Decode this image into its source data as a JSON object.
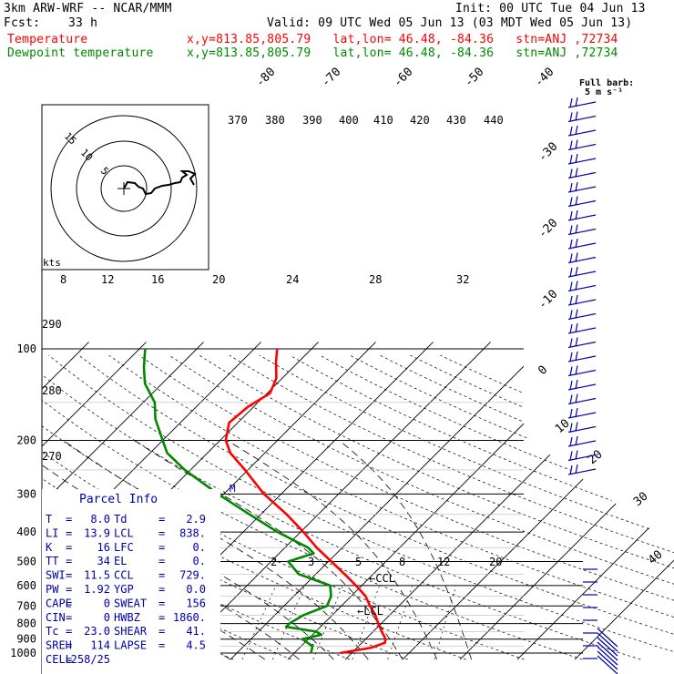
{
  "header": {
    "model": "3km ARW-WRF -- NCAR/MMM",
    "init": "Init: 00 UTC Tue 04 Jun 13",
    "fcst_label": "Fcst:",
    "fcst_value": "33 h",
    "valid": "Valid: 09 UTC Wed 05 Jun 13 (03 MDT Wed 05 Jun 13)",
    "temp_label": "Temperature",
    "dew_label": "Dewpoint temperature",
    "loc": "x,y=813.85,805.79   lat,lon= 46.48, -84.36   stn=ANJ ,72734"
  },
  "colors": {
    "temperature": "#ff0000",
    "dewpoint": "#008800",
    "hodograph": "#000000",
    "barbs": "#0000aa"
  },
  "barb_key": {
    "title": "Full barb:",
    "value": "5 m s⁻¹"
  },
  "chart_data": {
    "type": "line",
    "title": "",
    "y_axis": {
      "label": "",
      "scale": "log",
      "ticks": [
        100,
        200,
        300,
        400,
        500,
        600,
        700,
        800,
        900,
        1000
      ]
    },
    "isotherm_labels": [
      -80,
      -70,
      -60,
      -50,
      -40,
      -30,
      -20,
      -10,
      0,
      10,
      20,
      30,
      40
    ],
    "mixing_ratio_labels": [
      "2",
      "3",
      "5",
      "8",
      "12",
      "20"
    ],
    "theta_e_labels_top": [
      "370",
      "380",
      "390",
      "400",
      "410",
      "420",
      "430",
      "440"
    ],
    "theta_e_labels_mid": [
      "8",
      "12",
      "16",
      "20",
      "24",
      "28",
      "32"
    ],
    "theta_labels": [
      "290",
      "280",
      "270"
    ],
    "series": [
      {
        "name": "Temperature",
        "color": "#ff0000",
        "points": [
          [
            1000,
            8.0
          ],
          [
            960,
            12.5
          ],
          [
            925,
            14.0
          ],
          [
            900,
            13.5
          ],
          [
            850,
            11.5
          ],
          [
            800,
            9.5
          ],
          [
            750,
            7.5
          ],
          [
            700,
            5.0
          ],
          [
            650,
            2.5
          ],
          [
            600,
            -1.0
          ],
          [
            550,
            -5.0
          ],
          [
            500,
            -9.5
          ],
          [
            450,
            -14.5
          ],
          [
            400,
            -19.5
          ],
          [
            350,
            -25.5
          ],
          [
            300,
            -33.0
          ],
          [
            250,
            -40.5
          ],
          [
            220,
            -46.0
          ],
          [
            200,
            -49.0
          ],
          [
            175,
            -51.5
          ],
          [
            155,
            -51.0
          ],
          [
            140,
            -49.5
          ],
          [
            125,
            -51.0
          ],
          [
            110,
            -54.0
          ],
          [
            100,
            -56.0
          ]
        ]
      },
      {
        "name": "Dewpoint temperature",
        "color": "#008800",
        "points": [
          [
            1000,
            2.9
          ],
          [
            950,
            2.0
          ],
          [
            900,
            -1.0
          ],
          [
            870,
            1.5
          ],
          [
            850,
            0.0
          ],
          [
            820,
            -6.0
          ],
          [
            800,
            -6.0
          ],
          [
            750,
            -5.0
          ],
          [
            700,
            -2.5
          ],
          [
            650,
            -3.5
          ],
          [
            600,
            -5.5
          ],
          [
            550,
            -13.0
          ],
          [
            500,
            -17.0
          ],
          [
            470,
            -14.0
          ],
          [
            450,
            -16.0
          ],
          [
            400,
            -24.0
          ],
          [
            350,
            -32.0
          ],
          [
            300,
            -41.0
          ],
          [
            250,
            -51.0
          ],
          [
            220,
            -57.0
          ],
          [
            200,
            -60.0
          ],
          [
            170,
            -65.0
          ],
          [
            150,
            -68.0
          ],
          [
            130,
            -73.0
          ],
          [
            115,
            -76.0
          ],
          [
            100,
            -79.0
          ]
        ]
      }
    ]
  },
  "hodograph": {
    "units_label": "kts",
    "ring_labels": [
      "15",
      "10",
      "5"
    ]
  },
  "parcel_info": {
    "title": "Parcel Info",
    "rows": [
      {
        "left_label": "T",
        "left_value": "8.0",
        "right_label": "Td",
        "right_value": "2.9"
      },
      {
        "left_label": "LI",
        "left_value": "13.9",
        "right_label": "LCL",
        "right_value": "838."
      },
      {
        "left_label": "K",
        "left_value": "16",
        "right_label": "LFC",
        "right_value": "0."
      },
      {
        "left_label": "TT",
        "left_value": "34",
        "right_label": "EL",
        "right_value": "0."
      },
      {
        "left_label": "SWI",
        "left_value": "11.5",
        "right_label": "CCL",
        "right_value": "729."
      },
      {
        "left_label": "PW",
        "left_value": "1.92",
        "right_label": "YGP",
        "right_value": "0.0"
      },
      {
        "left_label": "CAPE",
        "left_value": "0",
        "right_label": "SWEAT",
        "right_value": "156"
      },
      {
        "left_label": "CIN",
        "left_value": "0",
        "right_label": "HWBZ",
        "right_value": "1860."
      },
      {
        "left_label": "Tc",
        "left_value": "23.0",
        "right_label": "SHEAR",
        "right_value": "41."
      },
      {
        "left_label": "SREH",
        "left_value": "114",
        "right_label": "LAPSE",
        "right_value": "4.5"
      },
      {
        "left_label": "CELL",
        "left_value": "258/25",
        "right_label": "",
        "right_value": ""
      }
    ]
  },
  "markers": {
    "ccl": "←CCL",
    "lcl": "←LCL"
  }
}
